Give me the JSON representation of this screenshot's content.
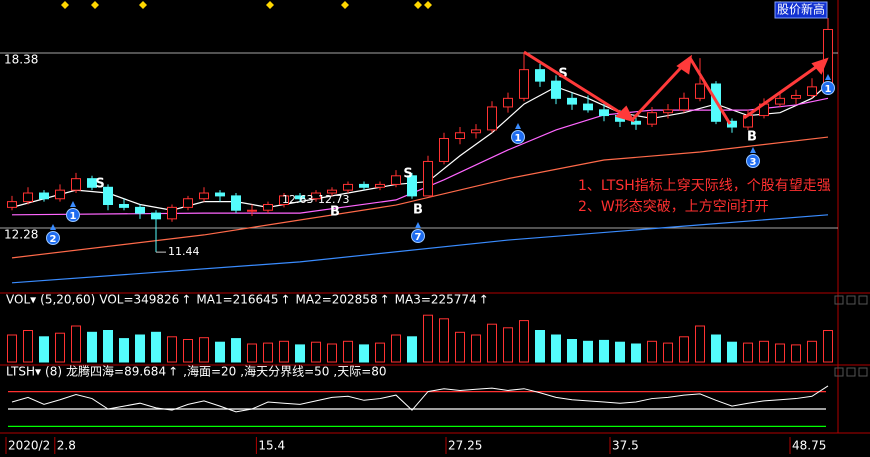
{
  "chart_data": [
    {
      "type": "candlestick",
      "categories": [
        null,
        null,
        null,
        null,
        null,
        null,
        null,
        null,
        null,
        null,
        null,
        null,
        null,
        null,
        null,
        null,
        null,
        null,
        null,
        null,
        null,
        null,
        null,
        null,
        null,
        null,
        null,
        null,
        null,
        null,
        null,
        null,
        null,
        null,
        null,
        null,
        null,
        null,
        null,
        null,
        null,
        null,
        null,
        null,
        null,
        null,
        null,
        null,
        null,
        null,
        null,
        null
      ],
      "ohlc": [
        [
          13.0,
          13.4,
          12.9,
          13.2
        ],
        [
          13.2,
          13.7,
          13.1,
          13.5
        ],
        [
          13.5,
          13.6,
          13.2,
          13.3
        ],
        [
          13.3,
          13.8,
          13.2,
          13.6
        ],
        [
          13.6,
          14.2,
          13.5,
          14.0
        ],
        [
          14.0,
          14.1,
          13.6,
          13.7
        ],
        [
          13.7,
          13.8,
          12.9,
          13.1
        ],
        [
          13.1,
          13.3,
          12.9,
          13.0
        ],
        [
          13.0,
          13.1,
          12.6,
          12.8
        ],
        [
          12.8,
          12.9,
          11.44,
          12.6
        ],
        [
          12.6,
          13.1,
          12.5,
          13.0
        ],
        [
          13.0,
          13.4,
          12.9,
          13.3
        ],
        [
          13.3,
          13.7,
          13.2,
          13.5
        ],
        [
          13.5,
          13.6,
          13.2,
          13.4
        ],
        [
          13.4,
          13.5,
          12.8,
          12.9
        ],
        [
          12.9,
          13.1,
          12.7,
          12.9
        ],
        [
          12.9,
          13.2,
          12.8,
          13.1
        ],
        [
          13.1,
          13.5,
          13.0,
          13.4
        ],
        [
          13.4,
          13.5,
          13.2,
          13.3
        ],
        [
          13.3,
          13.6,
          13.2,
          13.5
        ],
        [
          13.5,
          13.7,
          13.4,
          13.6
        ],
        [
          13.6,
          13.9,
          13.5,
          13.8
        ],
        [
          13.8,
          13.9,
          13.6,
          13.7
        ],
        [
          13.7,
          13.9,
          13.6,
          13.8
        ],
        [
          13.8,
          14.3,
          13.7,
          14.1
        ],
        [
          14.1,
          14.2,
          13.3,
          13.4
        ],
        [
          13.4,
          14.8,
          13.4,
          14.6
        ],
        [
          14.6,
          15.6,
          14.5,
          15.4
        ],
        [
          15.4,
          15.8,
          15.2,
          15.6
        ],
        [
          15.6,
          15.9,
          15.4,
          15.7
        ],
        [
          15.7,
          16.7,
          15.6,
          16.5
        ],
        [
          16.5,
          17.0,
          16.3,
          16.8
        ],
        [
          16.8,
          18.38,
          16.7,
          17.8
        ],
        [
          17.8,
          18.0,
          17.2,
          17.4
        ],
        [
          17.4,
          17.6,
          16.6,
          16.8
        ],
        [
          16.8,
          17.0,
          16.4,
          16.6
        ],
        [
          16.6,
          16.9,
          16.3,
          16.4
        ],
        [
          16.4,
          16.7,
          16.0,
          16.2
        ],
        [
          16.2,
          16.4,
          15.8,
          16.0
        ],
        [
          16.0,
          16.2,
          15.7,
          15.9
        ],
        [
          15.9,
          16.5,
          15.8,
          16.3
        ],
        [
          16.3,
          16.6,
          16.1,
          16.4
        ],
        [
          16.4,
          17.0,
          16.3,
          16.8
        ],
        [
          16.8,
          18.2,
          16.7,
          17.3
        ],
        [
          17.3,
          17.4,
          15.9,
          16.0
        ],
        [
          16.0,
          16.1,
          15.6,
          15.8
        ],
        [
          15.8,
          16.4,
          15.7,
          16.2
        ],
        [
          16.2,
          16.8,
          16.1,
          16.6
        ],
        [
          16.6,
          17.0,
          16.5,
          16.8
        ],
        [
          16.8,
          17.1,
          16.6,
          16.9
        ],
        [
          16.9,
          17.5,
          16.8,
          17.2
        ],
        [
          17.2,
          19.6,
          17.1,
          19.2
        ]
      ],
      "up_color": "#ff3232",
      "down_color": "#54fcfc",
      "lines": [
        {
          "color": "#ffffff",
          "x": [
            0,
            2,
            4,
            6,
            8,
            10,
            12,
            14,
            16,
            18,
            20,
            22,
            24,
            26,
            28,
            30,
            32,
            34,
            36,
            38,
            40,
            42,
            44,
            46,
            48,
            50,
            51
          ],
          "values": [
            13.0,
            13.3,
            13.6,
            13.5,
            13.1,
            12.9,
            13.2,
            13.2,
            13.0,
            13.2,
            13.4,
            13.6,
            13.8,
            13.9,
            14.8,
            15.6,
            16.6,
            17.2,
            16.8,
            16.3,
            16.1,
            16.3,
            16.6,
            16.2,
            16.3,
            16.8,
            17.3
          ]
        },
        {
          "color": "#ff66ff",
          "x": [
            0,
            12,
            18,
            24,
            27,
            31,
            34,
            37,
            40,
            43,
            46,
            49,
            51
          ],
          "values": [
            12.74,
            12.8,
            12.8,
            13.26,
            13.96,
            15.0,
            15.7,
            16.22,
            16.39,
            16.39,
            16.39,
            16.57,
            16.8
          ]
        },
        {
          "color": "#ff6a4a",
          "x": [
            0,
            12,
            24,
            31,
            37,
            43,
            51
          ],
          "values": [
            11.24,
            12.04,
            13.08,
            14.0,
            14.65,
            14.93,
            15.45
          ]
        },
        {
          "color": "#3a8cff",
          "x": [
            0,
            18,
            31,
            43,
            51
          ],
          "values": [
            10.37,
            11.1,
            11.86,
            12.39,
            12.74
          ]
        }
      ],
      "ylim": [
        10.05,
        19.67
      ],
      "yticks": [
        18.38,
        12.28
      ],
      "price_labels": [
        12.63,
        12.73
      ],
      "signals": [
        "S",
        "S",
        "S",
        "B",
        "B",
        "B"
      ],
      "badges": [
        "2",
        "1",
        "7",
        "1",
        "3",
        "1"
      ],
      "tag": "股价新高",
      "annotations": [
        "1、LTSH指标上穿天际线，个股有望走强",
        "2、W形态突破，上方空间打开"
      ]
    },
    {
      "type": "bar",
      "header": [
        "VOL▾",
        "(5,20,60)",
        "VOL=349826",
        "MA1=216645",
        "MA2=202858",
        "MA3=225774"
      ],
      "header_colors": [
        "#ffffff",
        "#ffffff",
        "#ffffff",
        "#ffff00",
        "#ff66ff",
        "#ff8040"
      ],
      "arrow": "↑",
      "values": [
        300000,
        350000,
        280000,
        320000,
        400000,
        330000,
        350000,
        260000,
        300000,
        330000,
        280000,
        250000,
        270000,
        220000,
        260000,
        200000,
        210000,
        230000,
        190000,
        220000,
        200000,
        230000,
        190000,
        210000,
        300000,
        280000,
        520000,
        480000,
        330000,
        300000,
        420000,
        380000,
        460000,
        350000,
        300000,
        250000,
        230000,
        240000,
        220000,
        200000,
        230000,
        210000,
        280000,
        400000,
        300000,
        220000,
        210000,
        230000,
        200000,
        190000,
        230000,
        349826
      ],
      "ylim": [
        0,
        600000
      ]
    },
    {
      "type": "line",
      "header": [
        "LTSH▾",
        "(8)",
        "龙腾四海=89.684",
        ",海面=20",
        ",海天分界线=50",
        ",天际=80"
      ],
      "header_colors": [
        "#ffffff",
        "#ffffff",
        "#ffffff",
        "#00ff00",
        "#ffffff",
        "#ff3030"
      ],
      "arrow": "↑",
      "color": "#ffffff",
      "values": [
        62,
        70,
        58,
        66,
        75,
        68,
        50,
        55,
        60,
        52,
        48,
        58,
        64,
        55,
        45,
        50,
        62,
        60,
        58,
        64,
        70,
        72,
        65,
        68,
        74,
        48,
        80,
        85,
        82,
        84,
        86,
        82,
        85,
        78,
        70,
        66,
        64,
        62,
        60,
        62,
        68,
        70,
        74,
        76,
        65,
        55,
        60,
        64,
        66,
        68,
        72,
        89.684
      ],
      "levels": [
        20,
        50,
        80
      ],
      "level_colors": [
        "#00ff00",
        "#ffffff",
        "#ff3030"
      ],
      "ylim": [
        0,
        100
      ],
      "xlim": [
        -0.5,
        51.5
      ],
      "xticks": [
        {
          "value": -0.25,
          "label": "2020/2"
        },
        2.8,
        15.4,
        27.25,
        37.5,
        48.75
      ]
    }
  ]
}
